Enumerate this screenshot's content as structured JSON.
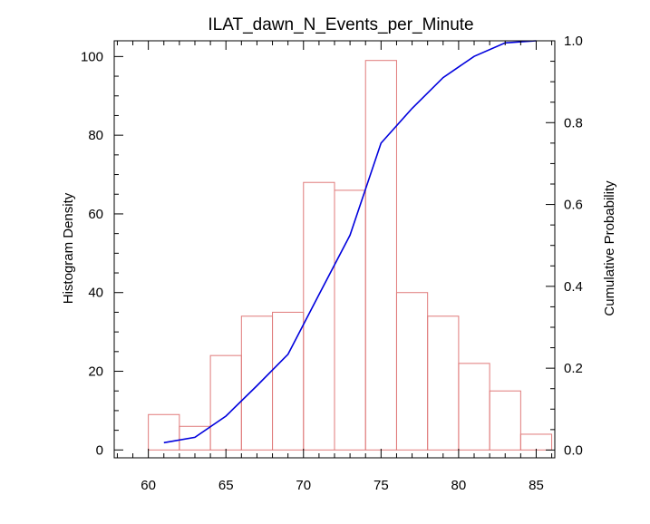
{
  "chart_data": {
    "type": "bar",
    "title": "ILAT_dawn_N_Events_per_Minute",
    "xlabel": "",
    "ylabel": "Histogram Density",
    "y2label": "Cumulative Probability",
    "xlim": [
      57.8,
      86.2
    ],
    "ylim": [
      -2,
      104
    ],
    "y2lim": [
      -0.019,
      1.0
    ],
    "x_ticks": [
      60,
      65,
      70,
      75,
      80,
      85
    ],
    "x_tick_labels": [
      "60",
      "65",
      "70",
      "75",
      "80",
      "85"
    ],
    "x_minor_step": 1,
    "y_ticks": [
      0,
      20,
      40,
      60,
      80,
      100
    ],
    "y_tick_labels": [
      "0",
      "20",
      "40",
      "60",
      "80",
      "100"
    ],
    "y_minor_step": 5,
    "y2_ticks": [
      0.0,
      0.2,
      0.4,
      0.6,
      0.8,
      1.0
    ],
    "y2_tick_labels": [
      "0.0",
      "0.2",
      "0.4",
      "0.6",
      "0.8",
      "1.0"
    ],
    "y2_minor_step": 0.05,
    "grid": false,
    "series": [
      {
        "type": "bar",
        "color": "#e07a7a",
        "bins": [
          {
            "x0": 60,
            "x1": 62,
            "value": 9
          },
          {
            "x0": 62,
            "x1": 64,
            "value": 6
          },
          {
            "x0": 64,
            "x1": 66,
            "value": 24
          },
          {
            "x0": 66,
            "x1": 68,
            "value": 34
          },
          {
            "x0": 68,
            "x1": 70,
            "value": 35
          },
          {
            "x0": 70,
            "x1": 72,
            "value": 68
          },
          {
            "x0": 72,
            "x1": 74,
            "value": 66
          },
          {
            "x0": 74,
            "x1": 76,
            "value": 99
          },
          {
            "x0": 76,
            "x1": 78,
            "value": 40
          },
          {
            "x0": 78,
            "x1": 80,
            "value": 34
          },
          {
            "x0": 80,
            "x1": 82,
            "value": 22
          },
          {
            "x0": 82,
            "x1": 84,
            "value": 15
          },
          {
            "x0": 84,
            "x1": 86,
            "value": 4
          }
        ]
      },
      {
        "type": "line",
        "axis": "right",
        "color": "#0000dd",
        "x": [
          61,
          63,
          65,
          67,
          69,
          71,
          73,
          75,
          77,
          79,
          81,
          83,
          85
        ],
        "y": [
          0.018,
          0.031,
          0.083,
          0.157,
          0.234,
          0.38,
          0.525,
          0.75,
          0.835,
          0.91,
          0.962,
          0.995,
          1.0
        ]
      }
    ]
  }
}
